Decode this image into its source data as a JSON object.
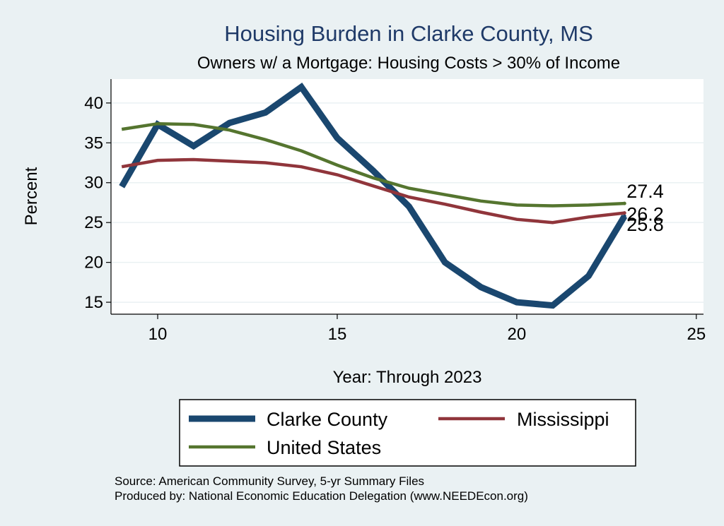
{
  "chart_data": {
    "type": "line",
    "title": "Housing Burden in Clarke County, MS",
    "subtitle": "Owners w/ a Mortgage: Housing Costs > 30% of Income",
    "xlabel": "Year: Through 2023",
    "ylabel": "Percent",
    "xlim": [
      8.7,
      25.2
    ],
    "ylim": [
      13.5,
      43
    ],
    "xticks": [
      10,
      15,
      20,
      25
    ],
    "yticks": [
      15,
      20,
      25,
      30,
      35,
      40
    ],
    "grid": true,
    "legend_position": "bottom",
    "series": [
      {
        "name": "Clarke County",
        "color": "#1a476f",
        "x": [
          9,
          10,
          11,
          12,
          13,
          14,
          15,
          16,
          17,
          18,
          19,
          20,
          21,
          22,
          23
        ],
        "values": [
          29.5,
          37.3,
          34.6,
          37.5,
          38.8,
          42.0,
          35.6,
          31.5,
          27.0,
          20.0,
          16.9,
          15.0,
          14.6,
          18.3,
          25.8
        ],
        "end_label": "25.8"
      },
      {
        "name": "Mississippi",
        "color": "#90353b",
        "x": [
          9,
          10,
          11,
          12,
          13,
          14,
          15,
          16,
          17,
          18,
          19,
          20,
          21,
          22,
          23
        ],
        "values": [
          32.0,
          32.8,
          32.9,
          32.7,
          32.5,
          32.0,
          31.0,
          29.6,
          28.2,
          27.3,
          26.3,
          25.4,
          25.0,
          25.7,
          26.2
        ],
        "end_label": "26.2"
      },
      {
        "name": "United States",
        "color": "#55752f",
        "x": [
          9,
          10,
          11,
          12,
          13,
          14,
          15,
          16,
          17,
          18,
          19,
          20,
          21,
          22,
          23
        ],
        "values": [
          36.7,
          37.4,
          37.3,
          36.6,
          35.4,
          34.0,
          32.2,
          30.6,
          29.3,
          28.5,
          27.7,
          27.2,
          27.1,
          27.2,
          27.4
        ],
        "end_label": "27.4"
      }
    ]
  },
  "notes": {
    "source": "Source: American Community Survey, 5-yr Summary Files",
    "produced": "Produced by: National Economic Education Delegation (www.NEEDEcon.org)"
  }
}
